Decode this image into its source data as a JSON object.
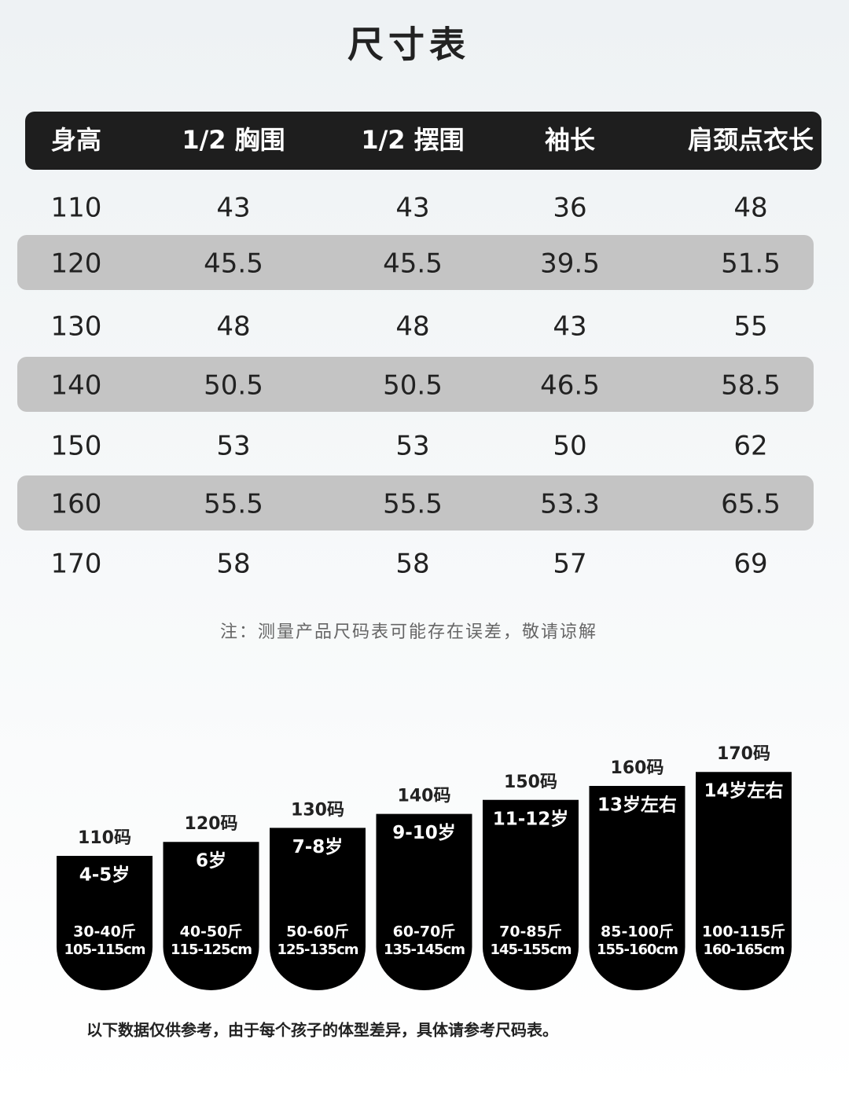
{
  "title": "尺寸表",
  "table": {
    "header": [
      "身高",
      "1/2 胸围",
      "1/2 摆围",
      "袖长",
      "肩颈点衣长"
    ],
    "rows": [
      [
        "110",
        "43",
        "43",
        "36",
        "48"
      ],
      [
        "120",
        "45.5",
        "45.5",
        "39.5",
        "51.5"
      ],
      [
        "130",
        "48",
        "48",
        "43",
        "55"
      ],
      [
        "140",
        "50.5",
        "50.5",
        "46.5",
        "58.5"
      ],
      [
        "150",
        "53",
        "53",
        "50",
        "62"
      ],
      [
        "160",
        "55.5",
        "55.5",
        "53.3",
        "65.5"
      ],
      [
        "170",
        "58",
        "58",
        "57",
        "69"
      ]
    ]
  },
  "note": "注：测量产品尺码表可能存在误差，敬请谅解",
  "sizes": [
    {
      "label": "110码",
      "age": "4-5岁",
      "weight": "30-40斤",
      "height": "105-115cm"
    },
    {
      "label": "120码",
      "age": "6岁",
      "weight": "40-50斤",
      "height": "115-125cm"
    },
    {
      "label": "130码",
      "age": "7-8岁",
      "weight": "50-60斤",
      "height": "125-135cm"
    },
    {
      "label": "140码",
      "age": "9-10岁",
      "weight": "60-70斤",
      "height": "135-145cm"
    },
    {
      "label": "150码",
      "age": "11-12岁",
      "weight": "70-85斤",
      "height": "145-155cm"
    },
    {
      "label": "160码",
      "age": "13岁左右",
      "weight": "85-100斤",
      "height": "155-160cm"
    },
    {
      "label": "170码",
      "age": "14岁左右",
      "weight": "100-115斤",
      "height": "160-165cm"
    }
  ],
  "footer": "以下数据仅供参考，由于每个孩子的体型差异，具体请参考尺码表。"
}
